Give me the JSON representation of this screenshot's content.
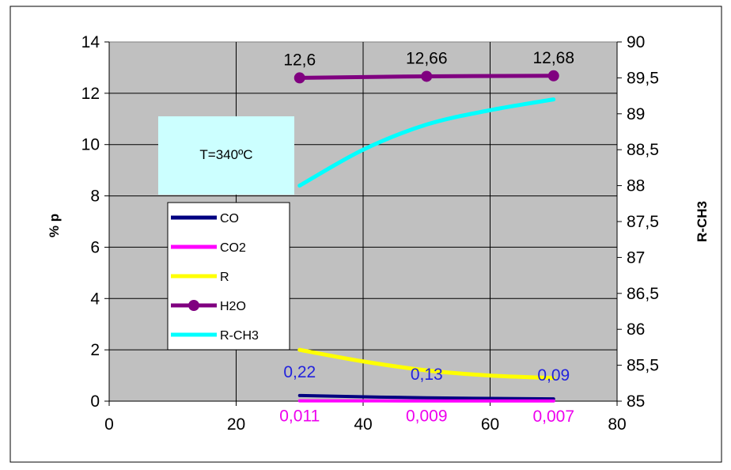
{
  "colors": {
    "plot_bg": "#c0c0c0",
    "CO": "#000080",
    "CO2": "#ff00ff",
    "R": "#ffff00",
    "H2O": "#800080",
    "R-CH3": "#00ffff",
    "label_blue": "#2222dd",
    "label_magenta": "#ee00ee",
    "annotation_bg": "#ccffff"
  },
  "chart_data": {
    "type": "line",
    "title": "",
    "xlabel": "",
    "ylabel": "% p",
    "y2label": "R-CH3",
    "xlim": [
      0,
      80
    ],
    "ylim": [
      0,
      14
    ],
    "y2lim": [
      85,
      90
    ],
    "x_ticks": [
      "0",
      "20",
      "40",
      "60",
      "80"
    ],
    "y_ticks": [
      "0",
      "2",
      "4",
      "6",
      "8",
      "10",
      "12",
      "14"
    ],
    "y2_ticks": [
      "85",
      "85,5",
      "86",
      "86,5",
      "87",
      "87,5",
      "88",
      "88,5",
      "89",
      "89,5",
      "90"
    ],
    "grid": true,
    "legend_position": "left",
    "annotation": "T=340ºC",
    "series": [
      {
        "name": "CO",
        "axis": "left",
        "x": [
          30,
          50,
          70
        ],
        "y": [
          0.22,
          0.13,
          0.09
        ],
        "labels": [
          "0,22",
          "0,13",
          "0,09"
        ]
      },
      {
        "name": "CO2",
        "axis": "left",
        "x": [
          30,
          50,
          70
        ],
        "y": [
          0.011,
          0.009,
          0.007
        ],
        "labels": [
          "0,011",
          "0,009",
          "0,007"
        ]
      },
      {
        "name": "R",
        "axis": "left",
        "x": [
          30,
          40,
          50,
          60,
          70
        ],
        "y": [
          2.0,
          1.55,
          1.2,
          1.0,
          0.9
        ]
      },
      {
        "name": "H2O",
        "axis": "left",
        "x": [
          30,
          50,
          70
        ],
        "y": [
          12.6,
          12.66,
          12.68
        ],
        "labels": [
          "12,6",
          "12,66",
          "12,68"
        ],
        "markers": true
      },
      {
        "name": "R-CH3",
        "axis": "right",
        "x": [
          30,
          40,
          50,
          60,
          70
        ],
        "y": [
          88.0,
          88.5,
          88.85,
          89.05,
          89.2
        ]
      }
    ]
  }
}
